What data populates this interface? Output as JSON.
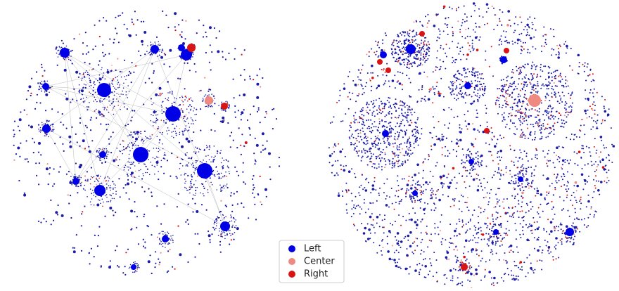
{
  "legend": {
    "items": [
      {
        "label": "Left",
        "color": "#0000e6"
      },
      {
        "label": "Center",
        "color": "#ee8a80"
      },
      {
        "label": "Right",
        "color": "#d91414"
      }
    ]
  }
}
